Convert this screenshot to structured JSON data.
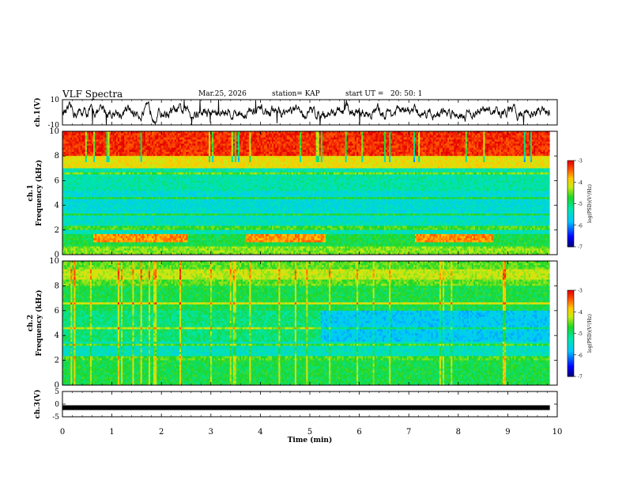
{
  "header": {
    "title": "VLF Spectra",
    "date": "Mar.25, 2026",
    "station": "station= KAP",
    "start": "start UT =   20: 50: 1"
  },
  "chart_data": [
    {
      "type": "line",
      "id": "ch1",
      "ylabel": "ch.1(V)",
      "ylim": [
        -10,
        10
      ],
      "yticks": [
        "10",
        "-10"
      ],
      "xlim": [
        0,
        10
      ],
      "description_values": "noisy waveform oscillating roughly between -10 and 10 V"
    },
    {
      "type": "heatmap",
      "id": "spec1",
      "ylabel": "Frequency (kHz)",
      "panel_label": "ch.1",
      "ylim": [
        0,
        10
      ],
      "yticks": [
        "0",
        "2",
        "4",
        "6",
        "8",
        "10"
      ],
      "xlim": [
        0,
        9.85
      ],
      "colorbar": {
        "label": "log(PSD)(V²/Hz)",
        "range": [
          -7,
          -3
        ],
        "ticks": [
          "-3",
          "-4",
          "-5",
          "-6",
          "-7"
        ]
      }
    },
    {
      "type": "heatmap",
      "id": "spec2",
      "ylabel": "Frequency (kHz)",
      "panel_label": "ch.2",
      "ylim": [
        0,
        10
      ],
      "yticks": [
        "0",
        "2",
        "4",
        "6",
        "8",
        "10"
      ],
      "xlim": [
        0,
        9.85
      ],
      "colorbar": {
        "label": "log(PSD)(V²/Hz)",
        "range": [
          -7,
          -3
        ],
        "ticks": [
          "-3",
          "-4",
          "-5",
          "-6",
          "-7"
        ]
      }
    },
    {
      "type": "line",
      "id": "ch3",
      "ylabel": "ch.3(V)",
      "ylim": [
        -5,
        5
      ],
      "yticks": [
        "5",
        "0",
        "-5"
      ],
      "xlim": [
        0,
        10
      ],
      "value": -1.4
    }
  ],
  "xaxis": {
    "label": "Time (min)",
    "range": [
      0,
      10
    ],
    "ticks": [
      "0",
      "1",
      "2",
      "3",
      "4",
      "5",
      "6",
      "7",
      "8",
      "9",
      "10"
    ]
  }
}
